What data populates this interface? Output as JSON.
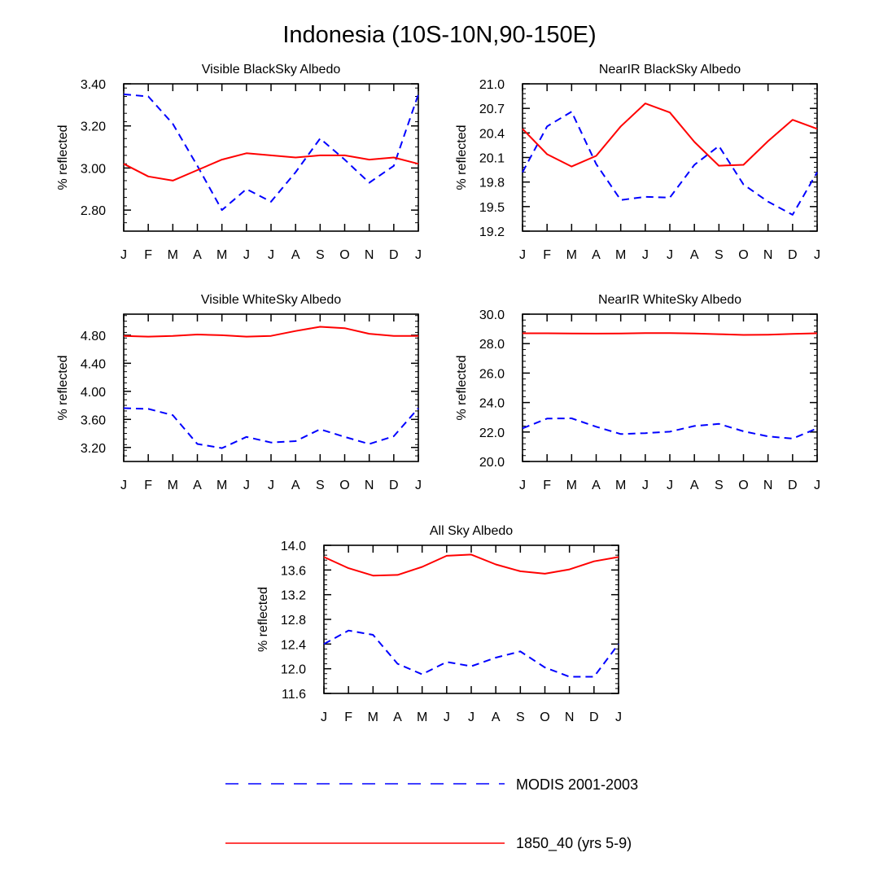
{
  "page": {
    "title": "Indonesia (10S-10N,90-150E)"
  },
  "legend": {
    "items": [
      {
        "label": "MODIS 2001-2003",
        "color": "#0000ff",
        "style": "dashed"
      },
      {
        "label": "1850_40 (yrs 5-9)",
        "color": "#ff0000",
        "style": "solid"
      }
    ]
  },
  "chart_data": [
    {
      "type": "line",
      "title": "Visible BlackSky Albedo",
      "xlabel": "",
      "ylabel": "% reflected",
      "categories": [
        "J",
        "F",
        "M",
        "A",
        "M",
        "J",
        "J",
        "A",
        "S",
        "O",
        "N",
        "D",
        "J"
      ],
      "ylim": [
        2.7,
        3.4
      ],
      "yticks": [
        2.8,
        3.0,
        3.2,
        3.4
      ],
      "ytick_labels": [
        "2.80",
        "3.00",
        "3.20",
        "3.40"
      ],
      "series": [
        {
          "name": "MODIS 2001-2003",
          "color": "#0000ff",
          "style": "dashed",
          "values": [
            3.35,
            3.34,
            3.21,
            3.01,
            2.8,
            2.9,
            2.84,
            2.98,
            3.14,
            3.04,
            2.93,
            3.01,
            3.35
          ]
        },
        {
          "name": "1850_40 (yrs 5-9)",
          "color": "#ff0000",
          "style": "solid",
          "values": [
            3.02,
            2.96,
            2.94,
            2.99,
            3.04,
            3.07,
            3.06,
            3.05,
            3.06,
            3.06,
            3.04,
            3.05,
            3.02
          ]
        }
      ]
    },
    {
      "type": "line",
      "title": "NearIR BlackSky Albedo",
      "xlabel": "",
      "ylabel": "% reflected",
      "categories": [
        "J",
        "F",
        "M",
        "A",
        "M",
        "J",
        "J",
        "A",
        "S",
        "O",
        "N",
        "D",
        "J"
      ],
      "ylim": [
        19.2,
        21.0
      ],
      "yticks": [
        19.2,
        19.5,
        19.8,
        20.1,
        20.4,
        20.7,
        21.0
      ],
      "ytick_labels": [
        "19.2",
        "19.5",
        "19.8",
        "20.1",
        "20.4",
        "20.7",
        "21.0"
      ],
      "series": [
        {
          "name": "MODIS 2001-2003",
          "color": "#0000ff",
          "style": "dashed",
          "values": [
            19.92,
            20.48,
            20.66,
            20.02,
            19.58,
            19.62,
            19.61,
            20.01,
            20.24,
            19.77,
            19.56,
            19.4,
            19.92
          ]
        },
        {
          "name": "1850_40 (yrs 5-9)",
          "color": "#ff0000",
          "style": "solid",
          "values": [
            20.45,
            20.14,
            19.99,
            20.12,
            20.48,
            20.76,
            20.65,
            20.29,
            20.0,
            20.01,
            20.3,
            20.56,
            20.45
          ]
        }
      ]
    },
    {
      "type": "line",
      "title": "Visible WhiteSky Albedo",
      "xlabel": "",
      "ylabel": "% reflected",
      "categories": [
        "J",
        "F",
        "M",
        "A",
        "M",
        "J",
        "J",
        "A",
        "S",
        "O",
        "N",
        "D",
        "J"
      ],
      "ylim": [
        3.0,
        5.1
      ],
      "yticks": [
        3.2,
        3.6,
        4.0,
        4.4,
        4.8
      ],
      "ytick_labels": [
        "3.20",
        "3.60",
        "4.00",
        "4.40",
        "4.80"
      ],
      "series": [
        {
          "name": "MODIS 2001-2003",
          "color": "#0000ff",
          "style": "dashed",
          "values": [
            3.76,
            3.75,
            3.66,
            3.25,
            3.19,
            3.35,
            3.27,
            3.29,
            3.46,
            3.35,
            3.25,
            3.36,
            3.76
          ]
        },
        {
          "name": "1850_40 (yrs 5-9)",
          "color": "#ff0000",
          "style": "solid",
          "values": [
            4.79,
            4.78,
            4.79,
            4.81,
            4.8,
            4.78,
            4.79,
            4.86,
            4.92,
            4.9,
            4.82,
            4.79,
            4.79
          ]
        }
      ]
    },
    {
      "type": "line",
      "title": "NearIR WhiteSky Albedo",
      "xlabel": "",
      "ylabel": "% reflected",
      "categories": [
        "J",
        "F",
        "M",
        "A",
        "M",
        "J",
        "J",
        "A",
        "S",
        "O",
        "N",
        "D",
        "J"
      ],
      "ylim": [
        20.0,
        30.0
      ],
      "yticks": [
        20.0,
        22.0,
        24.0,
        26.0,
        28.0,
        30.0
      ],
      "ytick_labels": [
        "20.0",
        "22.0",
        "24.0",
        "26.0",
        "28.0",
        "30.0"
      ],
      "series": [
        {
          "name": "MODIS 2001-2003",
          "color": "#0000ff",
          "style": "dashed",
          "values": [
            22.25,
            22.91,
            22.93,
            22.36,
            21.86,
            21.92,
            22.02,
            22.41,
            22.55,
            22.05,
            21.7,
            21.55,
            22.25
          ]
        },
        {
          "name": "1850_40 (yrs 5-9)",
          "color": "#ff0000",
          "style": "solid",
          "values": [
            28.7,
            28.7,
            28.69,
            28.68,
            28.69,
            28.71,
            28.71,
            28.69,
            28.64,
            28.59,
            28.61,
            28.66,
            28.7
          ]
        }
      ]
    },
    {
      "type": "line",
      "title": "All Sky Albedo",
      "xlabel": "",
      "ylabel": "% reflected",
      "categories": [
        "J",
        "F",
        "M",
        "A",
        "M",
        "J",
        "J",
        "A",
        "S",
        "O",
        "N",
        "D",
        "J"
      ],
      "ylim": [
        11.6,
        14.0
      ],
      "yticks": [
        11.6,
        12.0,
        12.4,
        12.8,
        13.2,
        13.6,
        14.0
      ],
      "ytick_labels": [
        "11.6",
        "12.0",
        "12.4",
        "12.8",
        "13.2",
        "13.6",
        "14.0"
      ],
      "series": [
        {
          "name": "MODIS 2001-2003",
          "color": "#0000ff",
          "style": "dashed",
          "values": [
            12.4,
            12.62,
            12.55,
            12.08,
            11.91,
            12.11,
            12.04,
            12.18,
            12.28,
            12.02,
            11.87,
            11.87,
            12.4
          ]
        },
        {
          "name": "1850_40 (yrs 5-9)",
          "color": "#ff0000",
          "style": "solid",
          "values": [
            13.81,
            13.63,
            13.51,
            13.52,
            13.65,
            13.83,
            13.85,
            13.69,
            13.58,
            13.54,
            13.61,
            13.74,
            13.81
          ]
        }
      ]
    }
  ]
}
